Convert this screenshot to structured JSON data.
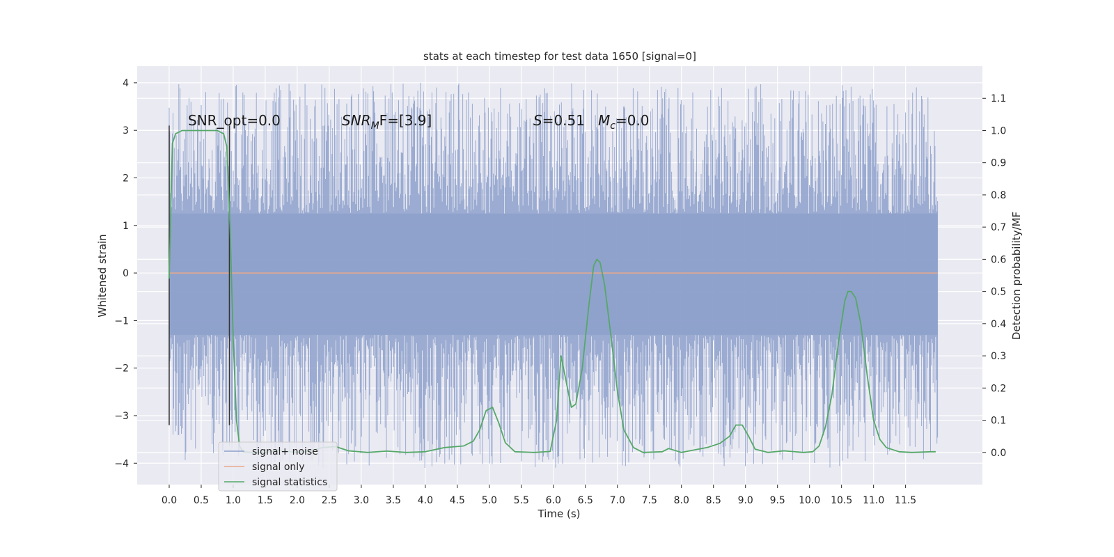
{
  "chart_data": {
    "type": "line",
    "title": "stats at each timestep for test data 1650 [signal=0]",
    "xlabel": "Time (s)",
    "ylabel": "Whitened strain",
    "y2label": "Detection probability/MF",
    "xlim": [
      -0.5,
      12.7
    ],
    "ylim": [
      -4.45,
      4.35
    ],
    "y2lim": [
      -0.1,
      1.2
    ],
    "xticks": [
      "0.0",
      "0.5",
      "1.0",
      "1.5",
      "2.0",
      "2.5",
      "3.0",
      "3.5",
      "4.0",
      "4.5",
      "5.0",
      "5.5",
      "6.0",
      "6.5",
      "7.0",
      "7.5",
      "8.0",
      "8.5",
      "9.0",
      "9.5",
      "10.0",
      "10.5",
      "11.0",
      "11.5"
    ],
    "yticks": [
      "4",
      "3",
      "2",
      "1",
      "0",
      "−1",
      "−2",
      "−3",
      "−4"
    ],
    "y2ticks": [
      "1.1",
      "1.0",
      "0.9",
      "0.8",
      "0.7",
      "0.6",
      "0.5",
      "0.4",
      "0.3",
      "0.2",
      "0.1",
      "0.0"
    ],
    "grid": true,
    "legend_position": "lower-left",
    "annotations": {
      "snr_opt": "SNR_opt=0.0",
      "snr_mf_prefix": "SNR",
      "snr_mf_sub": "M",
      "snr_mf_suffix": "F=[3.9]",
      "s_prefix": "S",
      "s_value": "=0.51",
      "mc_prefix": "M",
      "mc_sub": "c",
      "mc_value": "=0.0"
    },
    "markers": {
      "x": [
        0.0,
        0.94
      ],
      "y_range": [
        -3.2,
        3.1
      ]
    },
    "series": [
      {
        "name": "signal+ noise",
        "color": "#8da0cb",
        "kind": "noise",
        "x_range": [
          0.0,
          12.0
        ],
        "envelope_core": [
          -1.3,
          1.25
        ],
        "envelope_peak": [
          -4.1,
          4.0
        ]
      },
      {
        "name": "signal only",
        "color": "#e8a98b",
        "values": [
          [
            0.0,
            0.0
          ],
          [
            12.0,
            0.0
          ]
        ]
      },
      {
        "name": "signal statistics",
        "color": "#55a868",
        "axis": "right",
        "values": [
          [
            0.0,
            0.54
          ],
          [
            0.05,
            0.96
          ],
          [
            0.1,
            0.99
          ],
          [
            0.2,
            1.0
          ],
          [
            0.4,
            1.0
          ],
          [
            0.6,
            1.0
          ],
          [
            0.75,
            1.0
          ],
          [
            0.85,
            0.99
          ],
          [
            0.9,
            0.95
          ],
          [
            0.95,
            0.7
          ],
          [
            1.0,
            0.35
          ],
          [
            1.05,
            0.1
          ],
          [
            1.1,
            0.02
          ],
          [
            1.15,
            0.002
          ],
          [
            1.3,
            0.0
          ],
          [
            1.5,
            0.0
          ],
          [
            1.7,
            0.007
          ],
          [
            2.0,
            0.0
          ],
          [
            2.2,
            0.005
          ],
          [
            2.4,
            0.015
          ],
          [
            2.6,
            0.018
          ],
          [
            2.8,
            0.005
          ],
          [
            3.1,
            0.0
          ],
          [
            3.4,
            0.004
          ],
          [
            3.7,
            0.0
          ],
          [
            4.0,
            0.002
          ],
          [
            4.3,
            0.015
          ],
          [
            4.6,
            0.02
          ],
          [
            4.75,
            0.035
          ],
          [
            4.85,
            0.07
          ],
          [
            4.95,
            0.13
          ],
          [
            5.05,
            0.14
          ],
          [
            5.15,
            0.09
          ],
          [
            5.25,
            0.03
          ],
          [
            5.4,
            0.002
          ],
          [
            5.7,
            0.0
          ],
          [
            5.95,
            0.003
          ],
          [
            6.05,
            0.1
          ],
          [
            6.12,
            0.3
          ],
          [
            6.2,
            0.22
          ],
          [
            6.28,
            0.14
          ],
          [
            6.35,
            0.15
          ],
          [
            6.45,
            0.26
          ],
          [
            6.55,
            0.45
          ],
          [
            6.63,
            0.58
          ],
          [
            6.68,
            0.6
          ],
          [
            6.73,
            0.59
          ],
          [
            6.8,
            0.52
          ],
          [
            6.9,
            0.36
          ],
          [
            7.0,
            0.19
          ],
          [
            7.1,
            0.07
          ],
          [
            7.25,
            0.015
          ],
          [
            7.4,
            0.0
          ],
          [
            7.7,
            0.002
          ],
          [
            7.8,
            0.012
          ],
          [
            8.0,
            0.0
          ],
          [
            8.4,
            0.015
          ],
          [
            8.6,
            0.028
          ],
          [
            8.75,
            0.05
          ],
          [
            8.85,
            0.085
          ],
          [
            8.95,
            0.085
          ],
          [
            9.05,
            0.05
          ],
          [
            9.15,
            0.01
          ],
          [
            9.35,
            0.0
          ],
          [
            9.6,
            0.005
          ],
          [
            9.9,
            0.0
          ],
          [
            10.05,
            0.002
          ],
          [
            10.15,
            0.02
          ],
          [
            10.25,
            0.08
          ],
          [
            10.35,
            0.18
          ],
          [
            10.45,
            0.34
          ],
          [
            10.55,
            0.47
          ],
          [
            10.6,
            0.5
          ],
          [
            10.65,
            0.5
          ],
          [
            10.72,
            0.48
          ],
          [
            10.8,
            0.4
          ],
          [
            10.9,
            0.24
          ],
          [
            11.0,
            0.1
          ],
          [
            11.1,
            0.04
          ],
          [
            11.2,
            0.015
          ],
          [
            11.4,
            0.002
          ],
          [
            11.6,
            0.0
          ],
          [
            11.9,
            0.002
          ],
          [
            11.97,
            0.002
          ]
        ]
      }
    ]
  }
}
